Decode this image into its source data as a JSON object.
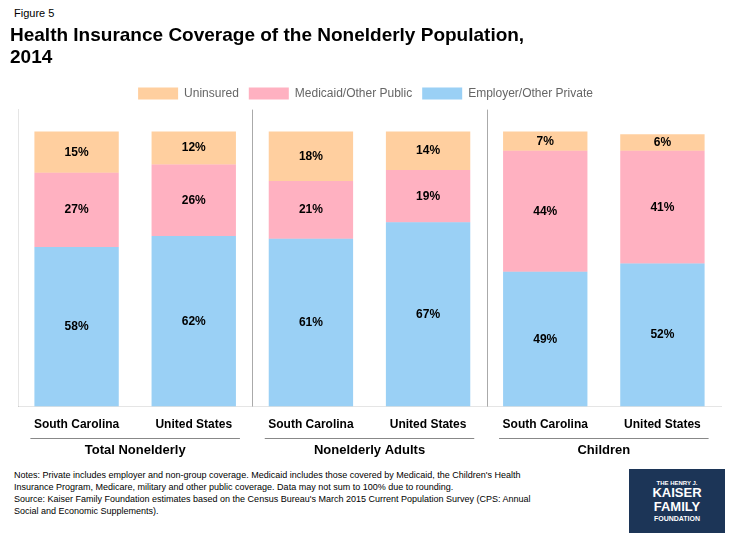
{
  "chart_data": {
    "type": "bar",
    "title": [
      "Health Insurance Coverage of the Nonelderly Population,",
      "2014"
    ],
    "subtitle": "Figure 5",
    "categories": [
      "South Carolina",
      "United States",
      "South Carolina",
      "United States",
      "South Carolina",
      "United States"
    ],
    "groups": [
      "Total Nonelderly",
      "Nonelderly Adults",
      "Children"
    ],
    "series": [
      {
        "name": "Employer/Other Private",
        "values": [
          58,
          62,
          61,
          67,
          49,
          52
        ],
        "value_labels": [
          "58%",
          "62%",
          "61%",
          "67%",
          "49%",
          "52%"
        ]
      },
      {
        "name": "Medicaid/Other Public",
        "values": [
          27,
          26,
          21,
          19,
          44,
          41
        ],
        "value_labels": [
          "27%",
          "26%",
          "21%",
          "19%",
          "44%",
          "41%"
        ]
      },
      {
        "name": "Uninsured",
        "values": [
          15,
          12,
          18,
          14,
          7,
          6
        ],
        "value_labels": [
          "15%",
          "12%",
          "18%",
          "14%",
          "7%",
          "6%"
        ]
      }
    ],
    "ylim": [
      0,
      108
    ],
    "yticks": [],
    "stacked": true,
    "data_labels": true,
    "legend": "top",
    "grid": false,
    "tick_labels": "x",
    "annotations": {
      "notes": [
        "Notes: Private includes employer and non-group coverage. Medicaid includes those covered by Medicaid, the Children's Health",
        "Insurance Program, Medicare, military and other public coverage. Data may not sum to 100% due to rounding.",
        "Source: Kaiser Family Foundation estimates based on the Census Bureau's March 2015 Current Population Survey (CPS: Annual",
        "Social and Economic Supplements)."
      ],
      "logo": [
        "THE HENRY J.",
        "KAISER",
        "FAMILY",
        "FOUNDATION"
      ]
    }
  }
}
